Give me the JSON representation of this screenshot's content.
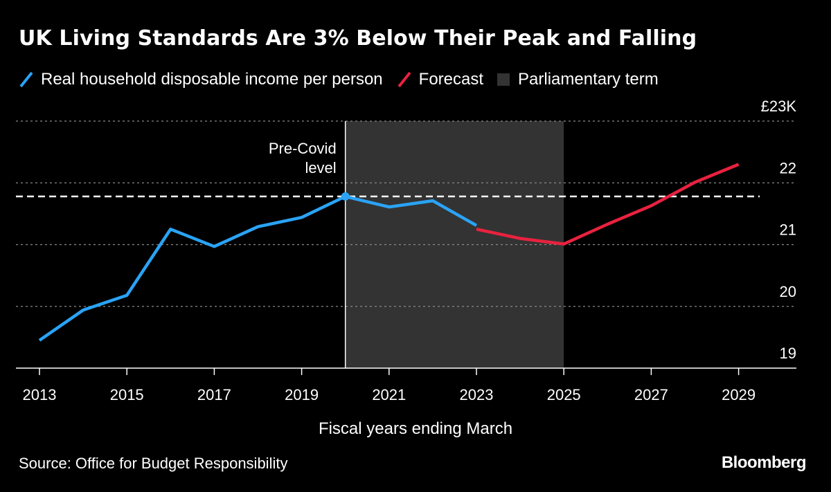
{
  "chart_data": {
    "type": "line",
    "title": "UK Living Standards Are 3% Below Their Peak and Falling",
    "xlabel": "Fiscal years ending March",
    "ylabel": "",
    "y_unit_label": "£23K",
    "ylim": [
      19,
      23
    ],
    "xlim": [
      2012.5,
      2030.3
    ],
    "y_ticks": [
      {
        "value": 23,
        "label": "£23K"
      },
      {
        "value": 22,
        "label": "22"
      },
      {
        "value": 21,
        "label": "21"
      },
      {
        "value": 20,
        "label": "20"
      },
      {
        "value": 19,
        "label": "19"
      }
    ],
    "x_ticks": [
      2013,
      2015,
      2017,
      2019,
      2021,
      2023,
      2025,
      2027,
      2029
    ],
    "x_tick_labels": [
      "2013",
      "2015",
      "2017",
      "2019",
      "2021",
      "2023",
      "2025",
      "2027",
      "2029"
    ],
    "grid": true,
    "legend_position": "top-left",
    "series": [
      {
        "name": "Real household disposable income per person",
        "color": "#2aa3f5",
        "x": [
          2013,
          2014,
          2015,
          2016,
          2017,
          2018,
          2019,
          2020,
          2021,
          2022,
          2023
        ],
        "values": [
          19.45,
          19.94,
          20.18,
          21.25,
          20.97,
          21.29,
          21.44,
          21.78,
          21.61,
          21.71,
          21.31
        ]
      },
      {
        "name": "Forecast",
        "color": "#e8223f",
        "x": [
          2023,
          2024,
          2025,
          2026,
          2027,
          2028,
          2029
        ],
        "values": [
          21.25,
          21.1,
          21.01,
          21.33,
          21.63,
          22.01,
          22.3
        ]
      }
    ],
    "shaded_regions": [
      {
        "name": "Parliamentary term",
        "x_start": 2020,
        "x_end": 2025,
        "color": "#333333"
      }
    ],
    "reference_lines": [
      {
        "name": "Pre-Covid level",
        "label_lines": [
          "Pre-Covid",
          "level"
        ],
        "value": 21.78,
        "color": "#ffffff",
        "style": "dashed",
        "marker_year": 2020
      }
    ]
  },
  "legend": {
    "items": [
      {
        "label": "Real household disposable income per person",
        "color": "#2aa3f5",
        "icon": "line-swatch-icon"
      },
      {
        "label": "Forecast",
        "color": "#e8223f",
        "icon": "line-swatch-icon"
      },
      {
        "label": "Parliamentary term",
        "color": "#333333",
        "icon": "box-swatch-icon"
      }
    ]
  },
  "footer": {
    "source": "Source: Office for Budget Responsibility",
    "brand": "Bloomberg"
  }
}
